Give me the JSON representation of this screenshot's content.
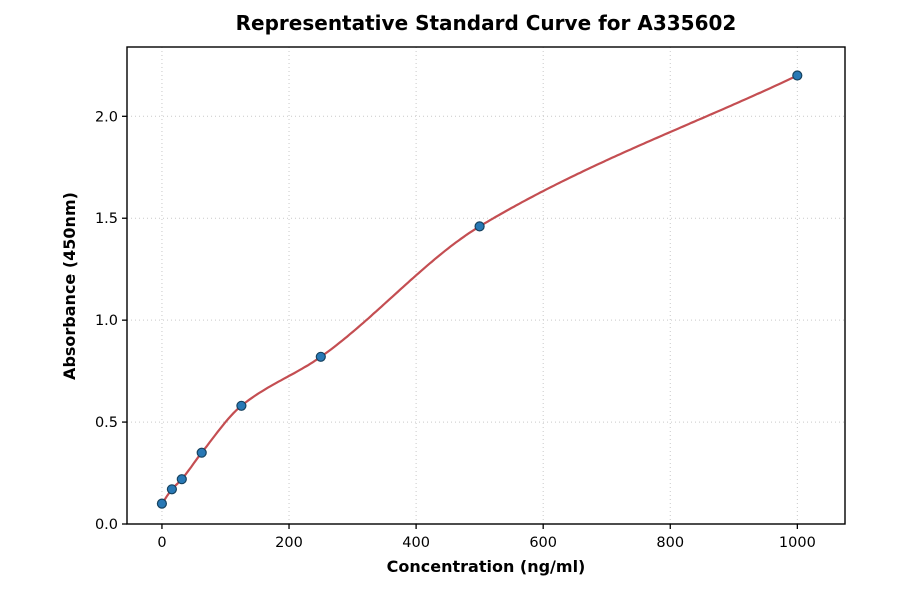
{
  "chart_data": {
    "type": "scatter",
    "title": "Representative Standard Curve for A335602",
    "xlabel": "Concentration (ng/ml)",
    "ylabel": "Absorbance (450nm)",
    "x": [
      0,
      15.625,
      31.25,
      62.5,
      125,
      250,
      500,
      1000
    ],
    "y": [
      0.1,
      0.17,
      0.22,
      0.35,
      0.58,
      0.82,
      1.46,
      2.2
    ],
    "fit_curve": "smooth saturating curve through all data points, from (0, 0.10) to (1000, 2.20)",
    "xlim": [
      -55,
      1075
    ],
    "ylim": [
      0,
      2.34
    ],
    "xticks": {
      "values": [
        0,
        200,
        400,
        600,
        800,
        1000
      ],
      "labels": [
        "0",
        "200",
        "400",
        "600",
        "800",
        "1000"
      ]
    },
    "yticks": {
      "values": [
        0,
        0.5,
        1.0,
        1.5,
        2.0
      ],
      "labels": [
        "0.0",
        "0.5",
        "1.0",
        "1.5",
        "2.0"
      ]
    },
    "grid": "dotted",
    "legend": "none",
    "colors": {
      "point_fill": "#2878b5",
      "point_edge": "#16425f",
      "fit_line": "#c44e52",
      "grid": "#c9c9c9",
      "axis": "#000000",
      "background": "#ffffff"
    }
  }
}
